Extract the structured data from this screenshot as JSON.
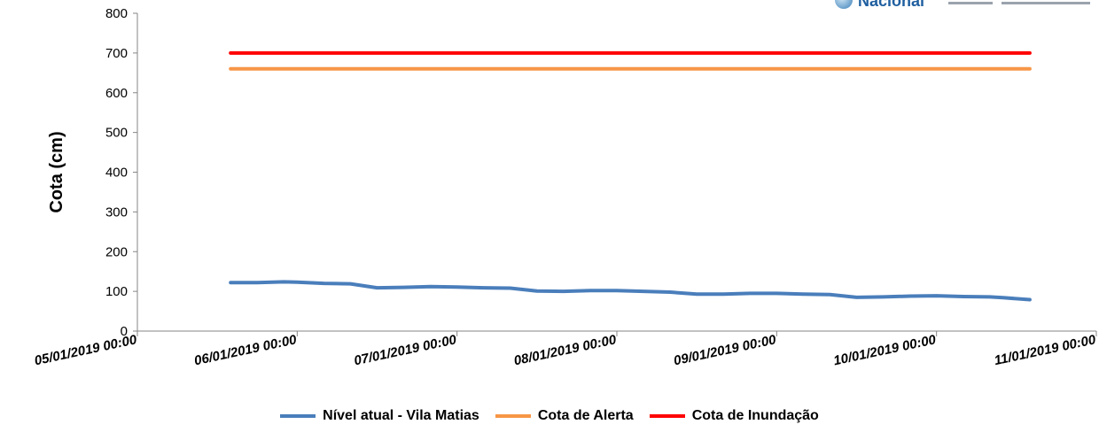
{
  "chart_data": {
    "type": "line",
    "ylabel": "Cota (cm)",
    "xlabel": "",
    "ylim": [
      0,
      800
    ],
    "yticks": [
      "0",
      "100",
      "200",
      "300",
      "400",
      "500",
      "600",
      "700",
      "800"
    ],
    "xticks": [
      "05/01/2019 00:00",
      "06/01/2019 00:00",
      "07/01/2019 00:00",
      "08/01/2019 00:00",
      "09/01/2019 00:00",
      "10/01/2019 00:00",
      "11/01/2019 00:00"
    ],
    "grid": false,
    "legend_position": "bottom",
    "series": [
      {
        "name": "Nível atual - Vila Matias",
        "color": "#4a7ebb",
        "points": [
          [
            "05/01/2019 14:00",
            122
          ],
          [
            "05/01/2019 18:00",
            122
          ],
          [
            "05/01/2019 22:00",
            124
          ],
          [
            "06/01/2019 00:00",
            123
          ],
          [
            "06/01/2019 04:00",
            120
          ],
          [
            "06/01/2019 08:00",
            119
          ],
          [
            "06/01/2019 12:00",
            109
          ],
          [
            "06/01/2019 16:00",
            110
          ],
          [
            "06/01/2019 20:00",
            112
          ],
          [
            "07/01/2019 00:00",
            111
          ],
          [
            "07/01/2019 04:00",
            109
          ],
          [
            "07/01/2019 08:00",
            108
          ],
          [
            "07/01/2019 12:00",
            101
          ],
          [
            "07/01/2019 16:00",
            100
          ],
          [
            "07/01/2019 20:00",
            102
          ],
          [
            "08/01/2019 00:00",
            102
          ],
          [
            "08/01/2019 04:00",
            100
          ],
          [
            "08/01/2019 08:00",
            98
          ],
          [
            "08/01/2019 12:00",
            93
          ],
          [
            "08/01/2019 16:00",
            93
          ],
          [
            "08/01/2019 20:00",
            95
          ],
          [
            "09/01/2019 00:00",
            95
          ],
          [
            "09/01/2019 04:00",
            93
          ],
          [
            "09/01/2019 08:00",
            92
          ],
          [
            "09/01/2019 12:00",
            85
          ],
          [
            "09/01/2019 16:00",
            86
          ],
          [
            "09/01/2019 20:00",
            88
          ],
          [
            "10/01/2019 00:00",
            89
          ],
          [
            "10/01/2019 04:00",
            87
          ],
          [
            "10/01/2019 08:00",
            86
          ],
          [
            "10/01/2019 10:00",
            84
          ],
          [
            "10/01/2019 14:00",
            79
          ]
        ]
      },
      {
        "name": "Cota de Alerta",
        "color": "#f79646",
        "points": [
          [
            "05/01/2019 14:00",
            660
          ],
          [
            "10/01/2019 14:00",
            660
          ]
        ]
      },
      {
        "name": "Cota de Inundação",
        "color": "#ff0000",
        "points": [
          [
            "05/01/2019 14:00",
            700
          ],
          [
            "10/01/2019 14:00",
            700
          ]
        ]
      }
    ]
  },
  "logo": {
    "text": "Nacional"
  }
}
